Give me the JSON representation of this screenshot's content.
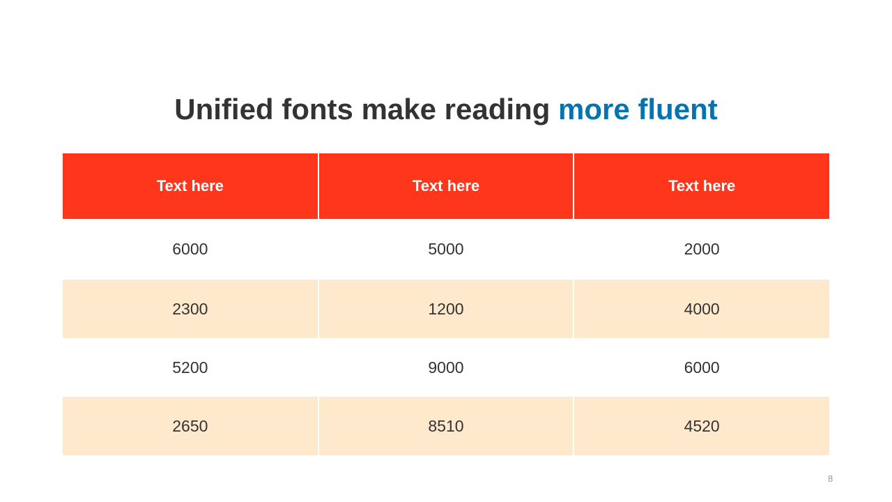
{
  "title": {
    "main": "Unified fonts make reading ",
    "accent": "more fluent"
  },
  "colors": {
    "header_bg": "#fd361c",
    "accent": "#0473b1",
    "alt_row_bg": "#fee9cc"
  },
  "table": {
    "headers": [
      "Text here",
      "Text here",
      "Text here"
    ],
    "rows": [
      [
        "6000",
        "5000",
        "2000"
      ],
      [
        "2300",
        "1200",
        "4000"
      ],
      [
        "5200",
        "9000",
        "6000"
      ],
      [
        "2650",
        "8510",
        "4520"
      ]
    ]
  },
  "page_number": "8"
}
